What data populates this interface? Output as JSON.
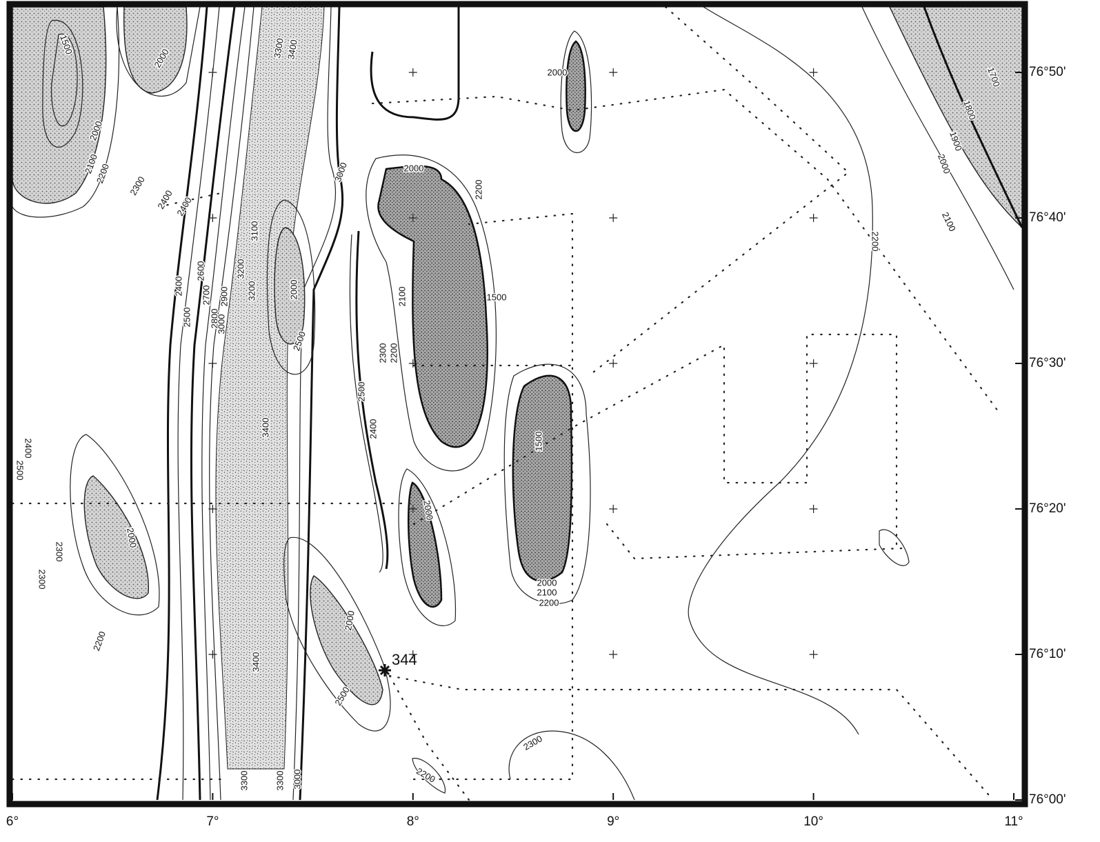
{
  "map": {
    "longitude_labels": [
      "6°",
      "7°",
      "8°",
      "9°",
      "10°",
      "11°"
    ],
    "latitude_labels": [
      "76°00'",
      "76°10'",
      "76°20'",
      "76°30'",
      "76°40'",
      "76°50'"
    ],
    "site_label": "344",
    "contour_labels": [
      "1500",
      "2000",
      "2000",
      "2100",
      "2200",
      "2300",
      "2400",
      "2400",
      "3300",
      "3400",
      "3000",
      "2000",
      "1700",
      "1800",
      "1900",
      "2000",
      "2000",
      "2200",
      "2100",
      "2200",
      "1500",
      "3100",
      "2400",
      "2600",
      "2700",
      "2800",
      "2900",
      "3200",
      "3200",
      "2500",
      "3000",
      "2000",
      "2500",
      "2100",
      "2300",
      "2200",
      "2500",
      "2400",
      "3400",
      "1500",
      "2000",
      "2000",
      "2400",
      "2500",
      "2300",
      "2300",
      "2000",
      "2100",
      "2200",
      "2200",
      "2000",
      "3400",
      "2500",
      "2300",
      "2200",
      "3300",
      "3300",
      "3000"
    ]
  }
}
